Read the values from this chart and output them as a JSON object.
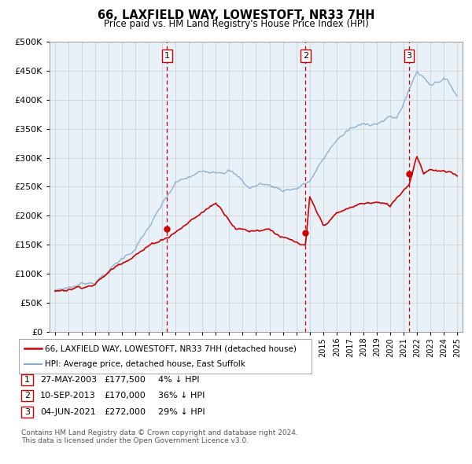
{
  "title": "66, LAXFIELD WAY, LOWESTOFT, NR33 7HH",
  "subtitle": "Price paid vs. HM Land Registry's House Price Index (HPI)",
  "legend_label_red": "66, LAXFIELD WAY, LOWESTOFT, NR33 7HH (detached house)",
  "legend_label_blue": "HPI: Average price, detached house, East Suffolk",
  "footer_line1": "Contains HM Land Registry data © Crown copyright and database right 2024.",
  "footer_line2": "This data is licensed under the Open Government Licence v3.0.",
  "transactions": [
    {
      "num": 1,
      "date": "27-MAY-2003",
      "price": "£177,500",
      "pct": "4%",
      "dir": "↓",
      "year": 2003.37
    },
    {
      "num": 2,
      "date": "10-SEP-2013",
      "price": "£170,000",
      "pct": "36%",
      "dir": "↓",
      "year": 2013.69
    },
    {
      "num": 3,
      "date": "04-JUN-2021",
      "price": "£272,000",
      "pct": "29%",
      "dir": "↓",
      "year": 2021.42
    }
  ],
  "red_color": "#cc0000",
  "blue_color": "#88aacc",
  "grid_color": "#cccccc",
  "plot_bg": "#e8f0f8",
  "ylim": [
    0,
    500000
  ],
  "yticks": [
    0,
    50000,
    100000,
    150000,
    200000,
    250000,
    300000,
    350000,
    400000,
    450000,
    500000
  ],
  "xlim_start": 1994.6,
  "xlim_end": 2025.4,
  "xticks": [
    1995,
    1996,
    1997,
    1998,
    1999,
    2000,
    2001,
    2002,
    2003,
    2004,
    2005,
    2006,
    2007,
    2008,
    2009,
    2010,
    2011,
    2012,
    2013,
    2014,
    2015,
    2016,
    2017,
    2018,
    2019,
    2020,
    2021,
    2022,
    2023,
    2024,
    2025
  ]
}
